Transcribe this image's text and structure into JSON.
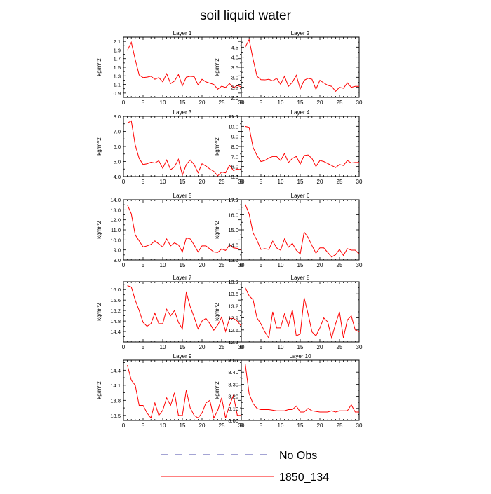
{
  "title": "soil liquid water",
  "colors": {
    "model_line": "#ff0000",
    "obs_line": "#4a4aa8",
    "axis": "#000000"
  },
  "legend": {
    "entries": [
      {
        "label": "No Obs",
        "style": "dashed",
        "color": "#4a4aa8"
      },
      {
        "label": "1850_134",
        "style": "solid",
        "color": "#ff0000"
      }
    ]
  },
  "chart_data": [
    {
      "type": "line",
      "title": "Layer 1",
      "ylabel": "kg/m^2",
      "xlim": [
        0,
        30
      ],
      "xticks": [
        0,
        5,
        10,
        15,
        20,
        25,
        30
      ],
      "ylim": [
        0.8,
        2.2
      ],
      "yticks": [
        0.9,
        1.1,
        1.3,
        1.5,
        1.7,
        1.9,
        2.1
      ],
      "x": [
        1,
        2,
        3,
        4,
        5,
        6,
        7,
        8,
        9,
        10,
        11,
        12,
        13,
        14,
        15,
        16,
        17,
        18,
        19,
        20,
        21,
        22,
        23,
        24,
        25,
        26,
        27,
        28,
        29,
        30
      ],
      "series": [
        {
          "name": "1850_134",
          "values": [
            1.89,
            2.08,
            1.68,
            1.32,
            1.26,
            1.27,
            1.29,
            1.22,
            1.26,
            1.16,
            1.35,
            1.12,
            1.18,
            1.33,
            1.07,
            1.27,
            1.29,
            1.28,
            1.09,
            1.22,
            1.16,
            1.13,
            1.1,
            0.99,
            1.06,
            1.03,
            1.12,
            1.02,
            1.08,
            1.04
          ]
        }
      ]
    },
    {
      "type": "line",
      "title": "Layer 2",
      "ylabel": "kg/m^2",
      "xlim": [
        0,
        30
      ],
      "xticks": [
        0,
        5,
        10,
        15,
        20,
        25,
        30
      ],
      "ylim": [
        2.0,
        5.0
      ],
      "yticks": [
        2.0,
        2.5,
        3.0,
        3.5,
        4.0,
        4.5,
        5.0
      ],
      "x": [
        1,
        2,
        3,
        4,
        5,
        6,
        7,
        8,
        9,
        10,
        11,
        12,
        13,
        14,
        15,
        16,
        17,
        18,
        19,
        20,
        21,
        22,
        23,
        24,
        25,
        26,
        27,
        28,
        29,
        30
      ],
      "series": [
        {
          "name": "1850_134",
          "values": [
            4.5,
            4.88,
            3.9,
            3.05,
            2.88,
            2.87,
            2.9,
            2.82,
            2.95,
            2.65,
            3.05,
            2.55,
            2.75,
            3.1,
            2.42,
            2.85,
            2.95,
            2.9,
            2.4,
            2.85,
            2.72,
            2.6,
            2.55,
            2.3,
            2.5,
            2.45,
            2.72,
            2.5,
            2.55,
            2.55
          ]
        }
      ]
    },
    {
      "type": "line",
      "title": "Layer 3",
      "ylabel": "kg/m^2",
      "xlim": [
        0,
        30
      ],
      "xticks": [
        0,
        5,
        10,
        15,
        20,
        25,
        30
      ],
      "ylim": [
        4.0,
        8.0
      ],
      "yticks": [
        4.0,
        5.0,
        6.0,
        7.0,
        8.0
      ],
      "x": [
        1,
        2,
        3,
        4,
        5,
        6,
        7,
        8,
        9,
        10,
        11,
        12,
        13,
        14,
        15,
        16,
        17,
        18,
        19,
        20,
        21,
        22,
        23,
        24,
        25,
        26,
        27,
        28,
        29,
        30
      ],
      "series": [
        {
          "name": "1850_134",
          "values": [
            7.55,
            7.7,
            6.1,
            5.2,
            4.8,
            4.85,
            4.95,
            4.9,
            5.05,
            4.55,
            5.1,
            4.45,
            4.65,
            5.15,
            4.1,
            4.8,
            5.1,
            4.8,
            4.25,
            4.85,
            4.7,
            4.5,
            4.35,
            4.05,
            4.3,
            4.25,
            4.75,
            4.4,
            4.5,
            4.45
          ]
        }
      ]
    },
    {
      "type": "line",
      "title": "Layer 4",
      "ylabel": "kg/m^2",
      "xlim": [
        0,
        30
      ],
      "xticks": [
        0,
        5,
        10,
        15,
        20,
        25,
        30
      ],
      "ylim": [
        5.0,
        11.0
      ],
      "yticks": [
        5.0,
        6.0,
        7.0,
        8.0,
        9.0,
        10.0,
        11.0
      ],
      "x": [
        1,
        2,
        3,
        4,
        5,
        6,
        7,
        8,
        9,
        10,
        11,
        12,
        13,
        14,
        15,
        16,
        17,
        18,
        19,
        20,
        21,
        22,
        23,
        24,
        25,
        26,
        27,
        28,
        29,
        30
      ],
      "series": [
        {
          "name": "1850_134",
          "values": [
            10.0,
            9.9,
            7.9,
            7.1,
            6.5,
            6.6,
            6.85,
            7.0,
            7.0,
            6.6,
            7.3,
            6.4,
            6.8,
            7.0,
            6.25,
            7.1,
            7.15,
            6.8,
            6.0,
            6.6,
            6.5,
            6.3,
            6.1,
            5.9,
            6.2,
            6.1,
            6.6,
            6.35,
            6.4,
            6.4
          ]
        }
      ]
    },
    {
      "type": "line",
      "title": "Layer 5",
      "ylabel": "kg/m^2",
      "xlim": [
        0,
        30
      ],
      "xticks": [
        0,
        5,
        10,
        15,
        20,
        25,
        30
      ],
      "ylim": [
        8.0,
        14.0
      ],
      "yticks": [
        8.0,
        9.0,
        10.0,
        11.0,
        12.0,
        13.0,
        14.0
      ],
      "x": [
        1,
        2,
        3,
        4,
        5,
        6,
        7,
        8,
        9,
        10,
        11,
        12,
        13,
        14,
        15,
        16,
        17,
        18,
        19,
        20,
        21,
        22,
        23,
        24,
        25,
        26,
        27,
        28,
        29,
        30
      ],
      "series": [
        {
          "name": "1850_134",
          "values": [
            13.5,
            12.6,
            10.5,
            9.9,
            9.3,
            9.4,
            9.55,
            9.9,
            9.6,
            9.3,
            10.1,
            9.4,
            9.7,
            9.5,
            8.8,
            10.2,
            10.1,
            9.5,
            8.8,
            9.4,
            9.4,
            9.1,
            8.8,
            8.75,
            9.1,
            8.95,
            9.5,
            9.2,
            9.15,
            9.0
          ]
        }
      ]
    },
    {
      "type": "line",
      "title": "Layer 6",
      "ylabel": "kg/m^2",
      "xlim": [
        0,
        30
      ],
      "xticks": [
        0,
        5,
        10,
        15,
        20,
        25,
        30
      ],
      "ylim": [
        13.0,
        17.0
      ],
      "yticks": [
        13.0,
        14.0,
        15.0,
        16.0,
        17.0
      ],
      "x": [
        1,
        2,
        3,
        4,
        5,
        6,
        7,
        8,
        9,
        10,
        11,
        12,
        13,
        14,
        15,
        16,
        17,
        18,
        19,
        20,
        21,
        22,
        23,
        24,
        25,
        26,
        27,
        28,
        29,
        30
      ],
      "series": [
        {
          "name": "1850_134",
          "values": [
            16.7,
            16.05,
            14.8,
            14.3,
            13.7,
            13.75,
            13.7,
            14.25,
            13.8,
            13.65,
            14.4,
            13.85,
            14.1,
            13.65,
            13.4,
            14.85,
            14.5,
            13.95,
            13.45,
            13.8,
            13.8,
            13.5,
            13.2,
            13.35,
            13.7,
            13.3,
            13.75,
            13.65,
            13.65,
            13.4
          ]
        }
      ]
    },
    {
      "type": "line",
      "title": "Layer 7",
      "ylabel": "kg/m^2",
      "xlim": [
        0,
        30
      ],
      "xticks": [
        0,
        5,
        10,
        15,
        20,
        25,
        30
      ],
      "ylim": [
        14.0,
        16.3
      ],
      "yticks": [
        14.4,
        14.8,
        15.2,
        15.6,
        16.0
      ],
      "x": [
        1,
        2,
        3,
        4,
        5,
        6,
        7,
        8,
        9,
        10,
        11,
        12,
        13,
        14,
        15,
        16,
        17,
        18,
        19,
        20,
        21,
        22,
        23,
        24,
        25,
        26,
        27,
        28,
        29,
        30
      ],
      "series": [
        {
          "name": "1850_134",
          "values": [
            16.15,
            16.1,
            15.6,
            15.2,
            14.75,
            14.6,
            14.7,
            15.1,
            14.7,
            14.7,
            15.25,
            15.0,
            15.2,
            14.75,
            14.5,
            15.9,
            15.35,
            14.95,
            14.5,
            14.8,
            14.9,
            14.7,
            14.45,
            14.65,
            14.95,
            14.4,
            14.9,
            14.9,
            14.8,
            14.6
          ]
        }
      ]
    },
    {
      "type": "line",
      "title": "Layer 8",
      "ylabel": "kg/m^2",
      "xlim": [
        0,
        30
      ],
      "xticks": [
        0,
        5,
        10,
        15,
        20,
        25,
        30
      ],
      "ylim": [
        12.3,
        13.8
      ],
      "yticks": [
        12.3,
        12.6,
        12.9,
        13.2,
        13.5,
        13.8
      ],
      "x": [
        1,
        2,
        3,
        4,
        5,
        6,
        7,
        8,
        9,
        10,
        11,
        12,
        13,
        14,
        15,
        16,
        17,
        18,
        19,
        20,
        21,
        22,
        23,
        24,
        25,
        26,
        27,
        28,
        29,
        30
      ],
      "series": [
        {
          "name": "1850_134",
          "values": [
            13.65,
            13.45,
            13.35,
            12.9,
            12.75,
            12.55,
            12.4,
            13.05,
            12.65,
            12.65,
            13.0,
            12.7,
            13.1,
            12.45,
            12.5,
            13.4,
            13.0,
            12.55,
            12.45,
            12.65,
            12.9,
            12.8,
            12.4,
            12.75,
            13.05,
            12.4,
            12.85,
            12.95,
            12.6,
            12.55
          ]
        }
      ]
    },
    {
      "type": "line",
      "title": "Layer 9",
      "ylabel": "kg/m^2",
      "xlim": [
        0,
        30
      ],
      "xticks": [
        0,
        5,
        10,
        15,
        20,
        25,
        30
      ],
      "ylim": [
        13.4,
        14.6
      ],
      "yticks": [
        13.5,
        13.8,
        14.1,
        14.4
      ],
      "x": [
        1,
        2,
        3,
        4,
        5,
        6,
        7,
        8,
        9,
        10,
        11,
        12,
        13,
        14,
        15,
        16,
        17,
        18,
        19,
        20,
        21,
        22,
        23,
        24,
        25,
        26,
        27,
        28,
        29,
        30
      ],
      "series": [
        {
          "name": "1850_134",
          "values": [
            14.5,
            14.2,
            14.1,
            13.7,
            13.7,
            13.55,
            13.45,
            13.75,
            13.5,
            13.6,
            13.85,
            13.7,
            13.95,
            13.5,
            13.5,
            14.0,
            13.65,
            13.5,
            13.45,
            13.55,
            13.75,
            13.8,
            13.45,
            13.6,
            13.85,
            13.45,
            13.7,
            13.9,
            13.5,
            13.5
          ]
        }
      ]
    },
    {
      "type": "line",
      "title": "Layer 10",
      "ylabel": "kg/m^2",
      "xlim": [
        0,
        30
      ],
      "xticks": [
        0,
        5,
        10,
        15,
        20,
        25,
        30
      ],
      "ylim": [
        8.0,
        8.5
      ],
      "yticks": [
        8.0,
        8.1,
        8.2,
        8.3,
        8.4,
        8.5
      ],
      "yticklabels": [
        "8.00",
        "8.10",
        "8.20",
        "8.30",
        "8.40",
        "8.50"
      ],
      "x": [
        1,
        2,
        3,
        4,
        5,
        6,
        7,
        8,
        9,
        10,
        11,
        12,
        13,
        14,
        15,
        16,
        17,
        18,
        19,
        20,
        21,
        22,
        23,
        24,
        25,
        26,
        27,
        28,
        29,
        30
      ],
      "series": [
        {
          "name": "1850_134",
          "values": [
            8.47,
            8.22,
            8.14,
            8.1,
            8.09,
            8.09,
            8.09,
            8.085,
            8.08,
            8.08,
            8.08,
            8.09,
            8.09,
            8.12,
            8.07,
            8.07,
            8.1,
            8.08,
            8.075,
            8.07,
            8.07,
            8.07,
            8.08,
            8.07,
            8.08,
            8.08,
            8.08,
            8.13,
            8.07,
            8.07
          ]
        }
      ]
    }
  ]
}
